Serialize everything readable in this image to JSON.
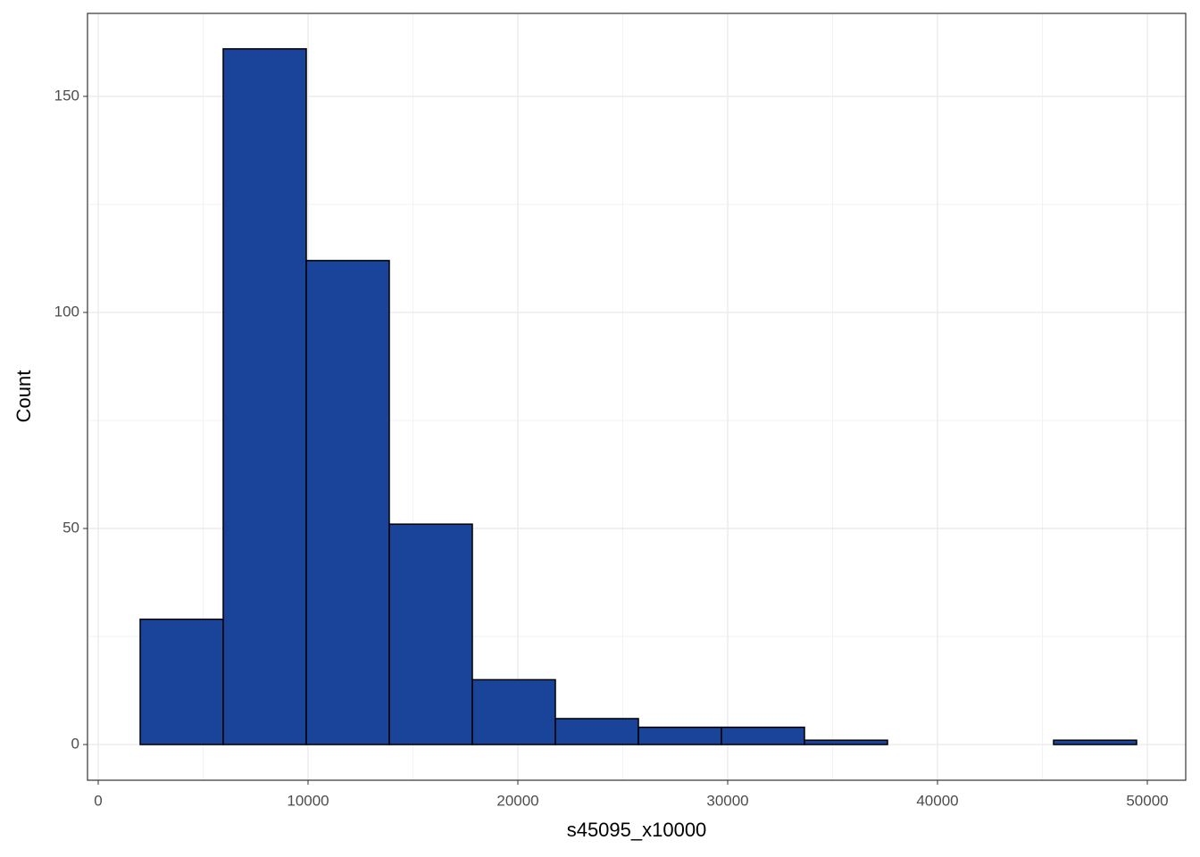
{
  "chart_data": {
    "type": "histogram",
    "x_label": "s45095_x10000",
    "y_label": "Count",
    "bins": [
      2000,
      5957,
      9915,
      13872,
      17830,
      21787,
      25745,
      29702,
      33660,
      37617,
      41574,
      45532,
      49489
    ],
    "counts": [
      29,
      161,
      112,
      51,
      15,
      6,
      4,
      4,
      1,
      0,
      0,
      1
    ],
    "color": "#1a4499",
    "edge_color": "#000000",
    "xlim": [
      -511,
      51830
    ],
    "xticks": [
      0,
      10000,
      20000,
      30000,
      40000,
      50000
    ],
    "ylim": [
      -8.26,
      169.2
    ],
    "yticks": [
      0,
      50,
      100,
      150
    ],
    "grid": true,
    "minor_grid": true
  }
}
